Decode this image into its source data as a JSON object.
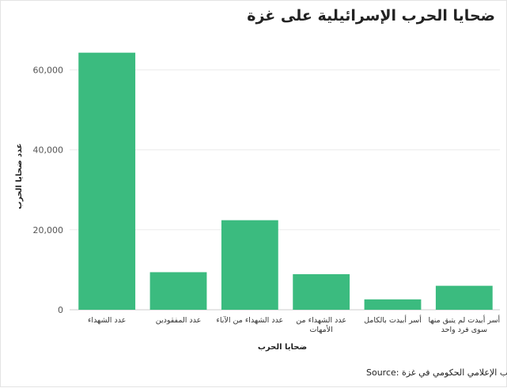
{
  "chart_data": {
    "type": "bar",
    "title": "ضحايا الحرب الإسرائيلية على غزة",
    "xlabel": "ضحايا الحرب",
    "ylabel": "عدد ضحايا الحرب",
    "categories": [
      [
        "عدد الشهداء"
      ],
      [
        "عدد المفقودين"
      ],
      [
        "عدد الشهداء من الآباء"
      ],
      [
        "عدد الشهداء من",
        "الأمهات"
      ],
      [
        "أسر أبيدت بالكامل"
      ],
      [
        "أسر أبيدت لم يتبق منها",
        "سوى فرد واحد"
      ]
    ],
    "values": [
      64300,
      9400,
      22400,
      8900,
      2600,
      6000
    ],
    "ylim": [
      0,
      67000
    ],
    "yticks": [
      "0",
      "20,000",
      "40,000",
      "60,000"
    ],
    "ytick_values": [
      0,
      20000,
      40000,
      60000
    ],
    "grid": true,
    "bar_color": "#3bbb7f",
    "source": "Source: المكتب الإعلامي الحكومي في غزة"
  }
}
